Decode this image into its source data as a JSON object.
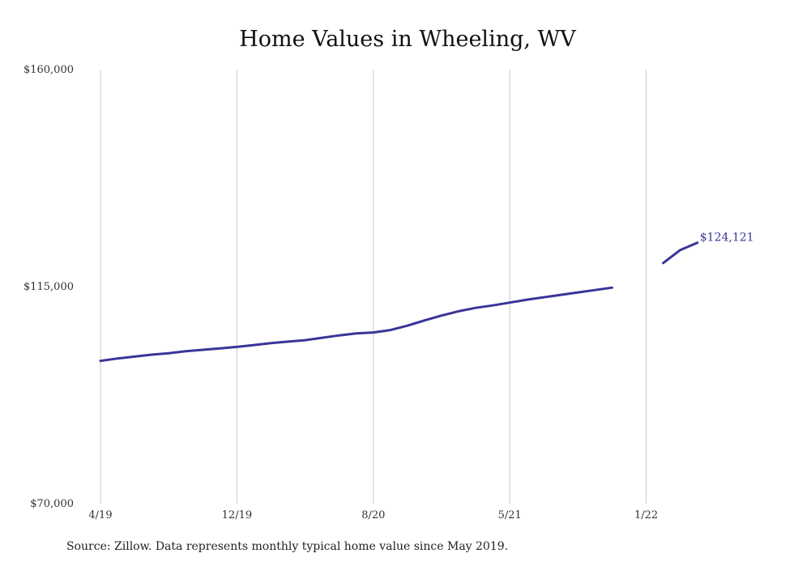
{
  "chart_data": {
    "type": "line",
    "title": "Home Values in Wheeling, WV",
    "xlabel": "",
    "ylabel": "",
    "ylim": [
      70000,
      160000
    ],
    "y_ticks": [
      "$160,000",
      "$115,000",
      "$70,000"
    ],
    "y_tick_values": [
      160000,
      115000,
      70000
    ],
    "x_tick_labels": [
      "4/19",
      "12/19",
      "8/20",
      "5/21",
      "1/22"
    ],
    "x_tick_index": [
      0,
      8,
      16,
      24,
      32
    ],
    "grid": "vertical",
    "line_color": "#3a3598",
    "series": [
      {
        "name": "",
        "segments": [
          {
            "x_index": [
              0,
              1,
              2,
              3,
              4,
              5,
              6,
              7,
              8,
              9,
              10,
              11,
              12,
              13,
              14,
              15,
              16,
              17,
              18,
              19,
              20,
              21,
              22,
              23,
              24,
              25,
              26,
              27,
              28,
              29,
              30
            ],
            "values": [
              99600,
              100100,
              100500,
              100900,
              101200,
              101600,
              101900,
              102200,
              102500,
              102900,
              103300,
              103600,
              103900,
              104400,
              104900,
              105300,
              105500,
              106000,
              106900,
              108000,
              109000,
              109900,
              110600,
              111100,
              111700,
              112300,
              112800,
              113300,
              113800,
              114300,
              114800
            ]
          },
          {
            "x_index": [
              33,
              34,
              35
            ],
            "values": [
              119900,
              122600,
              124121
            ]
          }
        ]
      }
    ],
    "end_label": "$124,121",
    "source": "Source: Zillow. Data represents monthly typical home value since May 2019."
  }
}
